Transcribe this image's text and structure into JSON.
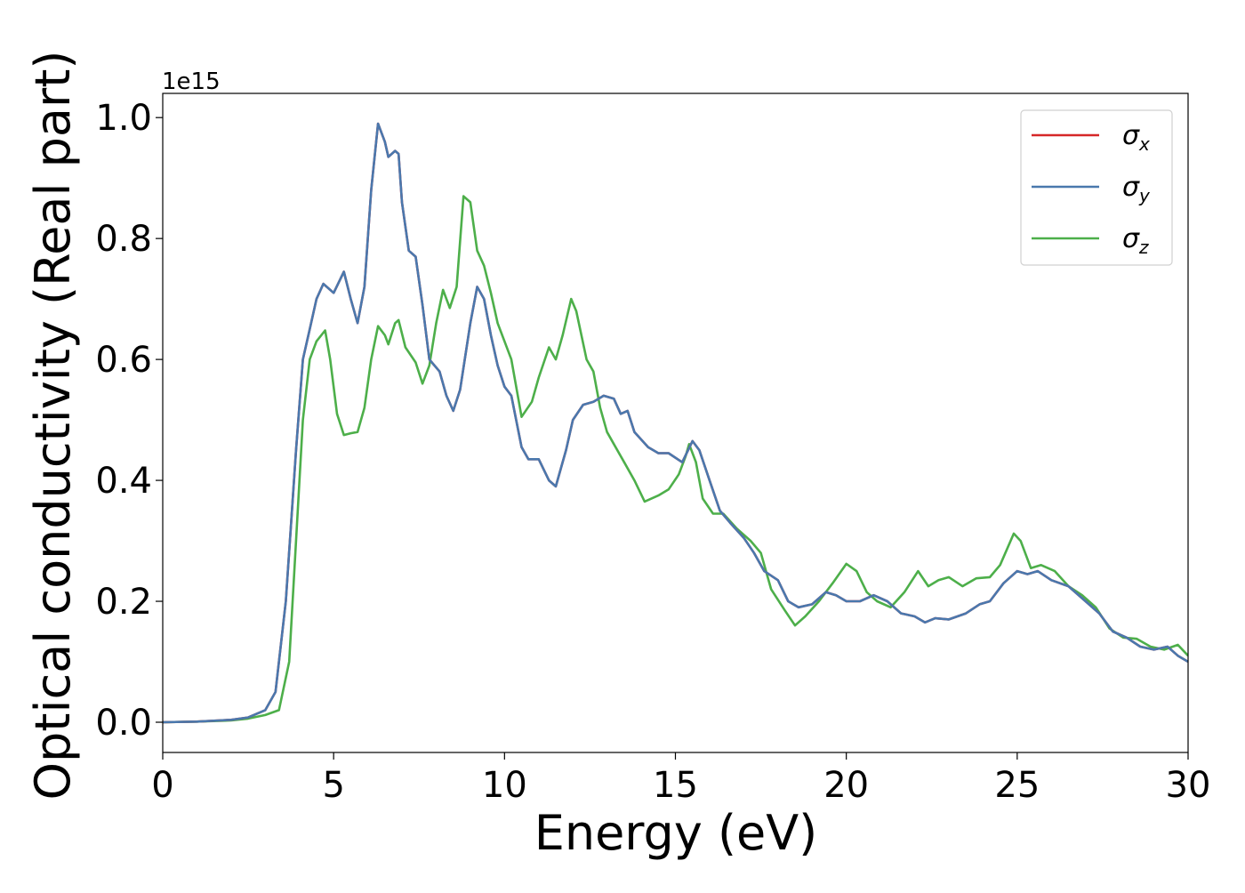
{
  "chart_data": {
    "type": "line",
    "title": "",
    "xlabel": "Energy (eV)",
    "ylabel": "Optical conductivity (Real part)",
    "y_offset_label": "1e15",
    "xlim": [
      0,
      30
    ],
    "ylim": [
      -0.05,
      1.04
    ],
    "x_ticks": [
      0,
      5,
      10,
      15,
      20,
      25,
      30
    ],
    "y_ticks": [
      0.0,
      0.2,
      0.4,
      0.6,
      0.8,
      1.0
    ],
    "x_tick_labels": [
      "0",
      "5",
      "10",
      "15",
      "20",
      "25",
      "30"
    ],
    "y_tick_labels": [
      "0.0",
      "0.2",
      "0.4",
      "0.6",
      "0.8",
      "1.0"
    ],
    "grid": false,
    "legend_position": "top-right",
    "series": [
      {
        "name": "σ_x",
        "label_main": "σ",
        "label_sub": "x",
        "color": "#d62728",
        "points": [
          [
            0,
            0
          ],
          [
            1,
            0.001
          ],
          [
            2,
            0.004
          ],
          [
            2.5,
            0.008
          ],
          [
            3,
            0.02
          ],
          [
            3.3,
            0.05
          ],
          [
            3.6,
            0.2
          ],
          [
            3.9,
            0.45
          ],
          [
            4.1,
            0.6
          ],
          [
            4.3,
            0.65
          ],
          [
            4.5,
            0.7
          ],
          [
            4.7,
            0.725
          ],
          [
            5.0,
            0.71
          ],
          [
            5.3,
            0.745
          ],
          [
            5.5,
            0.7
          ],
          [
            5.7,
            0.66
          ],
          [
            5.9,
            0.72
          ],
          [
            6.1,
            0.88
          ],
          [
            6.3,
            0.99
          ],
          [
            6.5,
            0.96
          ],
          [
            6.6,
            0.935
          ],
          [
            6.8,
            0.945
          ],
          [
            6.9,
            0.94
          ],
          [
            7.0,
            0.86
          ],
          [
            7.2,
            0.78
          ],
          [
            7.4,
            0.77
          ],
          [
            7.6,
            0.69
          ],
          [
            7.8,
            0.6
          ],
          [
            8.1,
            0.58
          ],
          [
            8.3,
            0.54
          ],
          [
            8.5,
            0.515
          ],
          [
            8.7,
            0.55
          ],
          [
            9.0,
            0.66
          ],
          [
            9.2,
            0.72
          ],
          [
            9.4,
            0.7
          ],
          [
            9.6,
            0.64
          ],
          [
            9.8,
            0.59
          ],
          [
            10.0,
            0.555
          ],
          [
            10.2,
            0.54
          ],
          [
            10.5,
            0.455
          ],
          [
            10.7,
            0.435
          ],
          [
            11.0,
            0.435
          ],
          [
            11.3,
            0.4
          ],
          [
            11.5,
            0.39
          ],
          [
            11.8,
            0.45
          ],
          [
            12.0,
            0.5
          ],
          [
            12.3,
            0.525
          ],
          [
            12.6,
            0.53
          ],
          [
            12.9,
            0.54
          ],
          [
            13.2,
            0.535
          ],
          [
            13.4,
            0.51
          ],
          [
            13.6,
            0.515
          ],
          [
            13.8,
            0.48
          ],
          [
            14.2,
            0.455
          ],
          [
            14.5,
            0.445
          ],
          [
            14.8,
            0.445
          ],
          [
            15.2,
            0.43
          ],
          [
            15.5,
            0.465
          ],
          [
            15.7,
            0.45
          ],
          [
            16.0,
            0.4
          ],
          [
            16.3,
            0.35
          ],
          [
            16.6,
            0.33
          ],
          [
            17.0,
            0.305
          ],
          [
            17.3,
            0.28
          ],
          [
            17.6,
            0.25
          ],
          [
            18.0,
            0.235
          ],
          [
            18.3,
            0.2
          ],
          [
            18.6,
            0.19
          ],
          [
            19.0,
            0.195
          ],
          [
            19.4,
            0.215
          ],
          [
            19.7,
            0.21
          ],
          [
            20.0,
            0.2
          ],
          [
            20.4,
            0.2
          ],
          [
            20.8,
            0.21
          ],
          [
            21.2,
            0.2
          ],
          [
            21.6,
            0.18
          ],
          [
            22.0,
            0.175
          ],
          [
            22.3,
            0.165
          ],
          [
            22.6,
            0.172
          ],
          [
            23.0,
            0.17
          ],
          [
            23.5,
            0.18
          ],
          [
            23.9,
            0.195
          ],
          [
            24.2,
            0.2
          ],
          [
            24.6,
            0.23
          ],
          [
            25.0,
            0.25
          ],
          [
            25.3,
            0.245
          ],
          [
            25.6,
            0.25
          ],
          [
            26.0,
            0.235
          ],
          [
            26.5,
            0.225
          ],
          [
            27.0,
            0.2
          ],
          [
            27.4,
            0.18
          ],
          [
            27.8,
            0.15
          ],
          [
            28.2,
            0.14
          ],
          [
            28.6,
            0.125
          ],
          [
            29.0,
            0.12
          ],
          [
            29.4,
            0.125
          ],
          [
            29.7,
            0.11
          ],
          [
            30.0,
            0.1
          ]
        ]
      },
      {
        "name": "σ_y",
        "label_main": "σ",
        "label_sub": "y",
        "color": "#4a78ad",
        "points": [
          [
            0,
            0
          ],
          [
            1,
            0.001
          ],
          [
            2,
            0.004
          ],
          [
            2.5,
            0.008
          ],
          [
            3,
            0.02
          ],
          [
            3.3,
            0.05
          ],
          [
            3.6,
            0.2
          ],
          [
            3.9,
            0.45
          ],
          [
            4.1,
            0.6
          ],
          [
            4.3,
            0.65
          ],
          [
            4.5,
            0.7
          ],
          [
            4.7,
            0.725
          ],
          [
            5.0,
            0.71
          ],
          [
            5.3,
            0.745
          ],
          [
            5.5,
            0.7
          ],
          [
            5.7,
            0.66
          ],
          [
            5.9,
            0.72
          ],
          [
            6.1,
            0.88
          ],
          [
            6.3,
            0.99
          ],
          [
            6.5,
            0.96
          ],
          [
            6.6,
            0.935
          ],
          [
            6.8,
            0.945
          ],
          [
            6.9,
            0.94
          ],
          [
            7.0,
            0.86
          ],
          [
            7.2,
            0.78
          ],
          [
            7.4,
            0.77
          ],
          [
            7.6,
            0.69
          ],
          [
            7.8,
            0.6
          ],
          [
            8.1,
            0.58
          ],
          [
            8.3,
            0.54
          ],
          [
            8.5,
            0.515
          ],
          [
            8.7,
            0.55
          ],
          [
            9.0,
            0.66
          ],
          [
            9.2,
            0.72
          ],
          [
            9.4,
            0.7
          ],
          [
            9.6,
            0.64
          ],
          [
            9.8,
            0.59
          ],
          [
            10.0,
            0.555
          ],
          [
            10.2,
            0.54
          ],
          [
            10.5,
            0.455
          ],
          [
            10.7,
            0.435
          ],
          [
            11.0,
            0.435
          ],
          [
            11.3,
            0.4
          ],
          [
            11.5,
            0.39
          ],
          [
            11.8,
            0.45
          ],
          [
            12.0,
            0.5
          ],
          [
            12.3,
            0.525
          ],
          [
            12.6,
            0.53
          ],
          [
            12.9,
            0.54
          ],
          [
            13.2,
            0.535
          ],
          [
            13.4,
            0.51
          ],
          [
            13.6,
            0.515
          ],
          [
            13.8,
            0.48
          ],
          [
            14.2,
            0.455
          ],
          [
            14.5,
            0.445
          ],
          [
            14.8,
            0.445
          ],
          [
            15.2,
            0.43
          ],
          [
            15.5,
            0.465
          ],
          [
            15.7,
            0.45
          ],
          [
            16.0,
            0.4
          ],
          [
            16.3,
            0.35
          ],
          [
            16.6,
            0.33
          ],
          [
            17.0,
            0.305
          ],
          [
            17.3,
            0.28
          ],
          [
            17.6,
            0.25
          ],
          [
            18.0,
            0.235
          ],
          [
            18.3,
            0.2
          ],
          [
            18.6,
            0.19
          ],
          [
            19.0,
            0.195
          ],
          [
            19.4,
            0.215
          ],
          [
            19.7,
            0.21
          ],
          [
            20.0,
            0.2
          ],
          [
            20.4,
            0.2
          ],
          [
            20.8,
            0.21
          ],
          [
            21.2,
            0.2
          ],
          [
            21.6,
            0.18
          ],
          [
            22.0,
            0.175
          ],
          [
            22.3,
            0.165
          ],
          [
            22.6,
            0.172
          ],
          [
            23.0,
            0.17
          ],
          [
            23.5,
            0.18
          ],
          [
            23.9,
            0.195
          ],
          [
            24.2,
            0.2
          ],
          [
            24.6,
            0.23
          ],
          [
            25.0,
            0.25
          ],
          [
            25.3,
            0.245
          ],
          [
            25.6,
            0.25
          ],
          [
            26.0,
            0.235
          ],
          [
            26.5,
            0.225
          ],
          [
            27.0,
            0.2
          ],
          [
            27.4,
            0.18
          ],
          [
            27.8,
            0.15
          ],
          [
            28.2,
            0.14
          ],
          [
            28.6,
            0.125
          ],
          [
            29.0,
            0.12
          ],
          [
            29.4,
            0.125
          ],
          [
            29.7,
            0.11
          ],
          [
            30.0,
            0.1
          ]
        ]
      },
      {
        "name": "σ_z",
        "label_main": "σ",
        "label_sub": "z",
        "color": "#4daf4a",
        "points": [
          [
            0,
            0
          ],
          [
            1,
            0.001
          ],
          [
            2,
            0.003
          ],
          [
            2.5,
            0.006
          ],
          [
            3,
            0.012
          ],
          [
            3.4,
            0.02
          ],
          [
            3.7,
            0.1
          ],
          [
            3.9,
            0.3
          ],
          [
            4.1,
            0.5
          ],
          [
            4.3,
            0.6
          ],
          [
            4.5,
            0.63
          ],
          [
            4.75,
            0.648
          ],
          [
            4.9,
            0.6
          ],
          [
            5.1,
            0.51
          ],
          [
            5.3,
            0.475
          ],
          [
            5.5,
            0.478
          ],
          [
            5.7,
            0.48
          ],
          [
            5.9,
            0.52
          ],
          [
            6.1,
            0.6
          ],
          [
            6.3,
            0.655
          ],
          [
            6.5,
            0.64
          ],
          [
            6.6,
            0.625
          ],
          [
            6.8,
            0.66
          ],
          [
            6.9,
            0.665
          ],
          [
            7.1,
            0.62
          ],
          [
            7.4,
            0.595
          ],
          [
            7.6,
            0.56
          ],
          [
            7.8,
            0.59
          ],
          [
            8.0,
            0.66
          ],
          [
            8.2,
            0.715
          ],
          [
            8.4,
            0.685
          ],
          [
            8.6,
            0.72
          ],
          [
            8.8,
            0.87
          ],
          [
            9.0,
            0.86
          ],
          [
            9.2,
            0.78
          ],
          [
            9.4,
            0.755
          ],
          [
            9.6,
            0.71
          ],
          [
            9.8,
            0.66
          ],
          [
            10.0,
            0.63
          ],
          [
            10.2,
            0.6
          ],
          [
            10.5,
            0.505
          ],
          [
            10.8,
            0.53
          ],
          [
            11.0,
            0.57
          ],
          [
            11.3,
            0.62
          ],
          [
            11.5,
            0.6
          ],
          [
            11.7,
            0.64
          ],
          [
            11.95,
            0.7
          ],
          [
            12.1,
            0.68
          ],
          [
            12.4,
            0.6
          ],
          [
            12.6,
            0.58
          ],
          [
            12.8,
            0.52
          ],
          [
            13.0,
            0.48
          ],
          [
            13.2,
            0.46
          ],
          [
            13.5,
            0.43
          ],
          [
            13.8,
            0.4
          ],
          [
            14.1,
            0.365
          ],
          [
            14.5,
            0.375
          ],
          [
            14.8,
            0.385
          ],
          [
            15.1,
            0.41
          ],
          [
            15.3,
            0.44
          ],
          [
            15.4,
            0.46
          ],
          [
            15.6,
            0.43
          ],
          [
            15.8,
            0.37
          ],
          [
            16.1,
            0.345
          ],
          [
            16.4,
            0.345
          ],
          [
            16.8,
            0.32
          ],
          [
            17.2,
            0.3
          ],
          [
            17.5,
            0.28
          ],
          [
            17.8,
            0.22
          ],
          [
            18.2,
            0.185
          ],
          [
            18.5,
            0.16
          ],
          [
            18.8,
            0.175
          ],
          [
            19.2,
            0.2
          ],
          [
            19.6,
            0.23
          ],
          [
            20.0,
            0.262
          ],
          [
            20.3,
            0.25
          ],
          [
            20.6,
            0.215
          ],
          [
            20.9,
            0.2
          ],
          [
            21.3,
            0.19
          ],
          [
            21.7,
            0.215
          ],
          [
            22.1,
            0.25
          ],
          [
            22.4,
            0.225
          ],
          [
            22.7,
            0.235
          ],
          [
            23.0,
            0.24
          ],
          [
            23.4,
            0.225
          ],
          [
            23.8,
            0.238
          ],
          [
            24.2,
            0.24
          ],
          [
            24.5,
            0.26
          ],
          [
            24.9,
            0.312
          ],
          [
            25.1,
            0.3
          ],
          [
            25.4,
            0.255
          ],
          [
            25.7,
            0.26
          ],
          [
            26.1,
            0.25
          ],
          [
            26.5,
            0.225
          ],
          [
            26.9,
            0.21
          ],
          [
            27.3,
            0.19
          ],
          [
            27.7,
            0.155
          ],
          [
            28.1,
            0.14
          ],
          [
            28.5,
            0.138
          ],
          [
            28.9,
            0.125
          ],
          [
            29.3,
            0.12
          ],
          [
            29.7,
            0.128
          ],
          [
            30.0,
            0.11
          ]
        ]
      }
    ]
  }
}
